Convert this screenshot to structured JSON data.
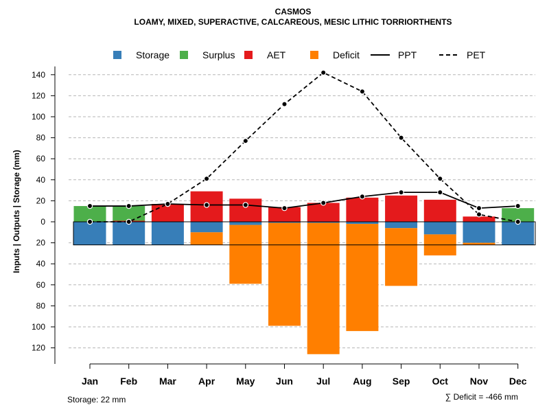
{
  "chart_data": {
    "type": "bar",
    "title": "CASMOS",
    "subtitle": "LOAMY, MIXED, SUPERACTIVE, CALCAREOUS, MESIC LITHIC TORRIORTHENTS",
    "ylabel": "Inputs | Outputs | Storage    (mm)",
    "ylim": [
      -130,
      145
    ],
    "yticks": [
      140,
      120,
      100,
      80,
      60,
      40,
      20,
      0,
      -20,
      -40,
      -60,
      -80,
      -100,
      -120
    ],
    "ytick_labels": [
      "140",
      "120",
      "100",
      "80",
      "60",
      "40",
      "20",
      "0",
      "20",
      "40",
      "60",
      "80",
      "100",
      "120"
    ],
    "categories": [
      "Jan",
      "Feb",
      "Mar",
      "Apr",
      "May",
      "Jun",
      "Jul",
      "Aug",
      "Sep",
      "Oct",
      "Nov",
      "Dec"
    ],
    "grid": true,
    "legend": [
      {
        "name": "Storage",
        "kind": "box",
        "color": "#377EB8"
      },
      {
        "name": "Surplus",
        "kind": "box",
        "color": "#4DAF4A"
      },
      {
        "name": "AET",
        "kind": "box",
        "color": "#E41A1C"
      },
      {
        "name": "Deficit",
        "kind": "box",
        "color": "#FF7F00"
      },
      {
        "name": "PPT",
        "kind": "solid-line",
        "color": "#000000"
      },
      {
        "name": "PET",
        "kind": "dashed-line",
        "color": "#000000"
      }
    ],
    "series": [
      {
        "name": "Surplus",
        "color": "#4DAF4A",
        "values": [
          15,
          15,
          0,
          0,
          0,
          0,
          0,
          0,
          0,
          0,
          0,
          13
        ]
      },
      {
        "name": "AET",
        "color": "#E41A1C",
        "values": [
          0,
          1,
          17,
          29,
          22,
          14,
          18,
          23,
          25,
          21,
          5,
          0
        ]
      },
      {
        "name": "Storage",
        "color": "#377EB8",
        "values": [
          22,
          22,
          22,
          10,
          3,
          1,
          1,
          2,
          6,
          12,
          20,
          22
        ]
      },
      {
        "name": "Deficit",
        "color": "#FF7F00",
        "values": [
          0,
          0,
          0,
          12,
          56,
          98,
          125,
          102,
          55,
          20,
          2,
          0
        ]
      },
      {
        "name": "PPT",
        "color": "#000000",
        "values": [
          15,
          15,
          17,
          16,
          16,
          13,
          18,
          24,
          28,
          28,
          13,
          15
        ]
      },
      {
        "name": "PET",
        "color": "#000000",
        "values": [
          0,
          0,
          17,
          41,
          77,
          112,
          142,
          124,
          80,
          41,
          7,
          0
        ]
      }
    ],
    "storage_capacity": 22,
    "footer_left": "Storage: 22 mm",
    "footer_right": "∑ Deficit = -466 mm"
  }
}
